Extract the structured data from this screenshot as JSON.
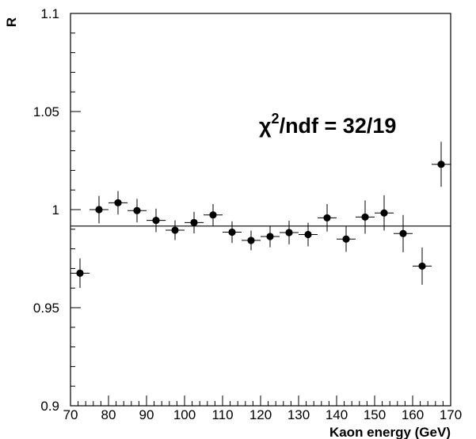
{
  "chart_data": {
    "type": "scatter",
    "title": "",
    "xlabel": "Kaon energy (GeV)",
    "ylabel": "R",
    "xlim": [
      70,
      170
    ],
    "ylim": [
      0.9,
      1.1
    ],
    "x_ticks": [
      70,
      80,
      90,
      100,
      110,
      120,
      130,
      140,
      150,
      160,
      170
    ],
    "x_tick_labels": [
      "70",
      "80",
      "90",
      "100",
      "110",
      "120",
      "130",
      "140",
      "150",
      "160",
      "170"
    ],
    "y_ticks": [
      0.9,
      0.95,
      1.0,
      1.05,
      1.1
    ],
    "y_tick_labels": [
      "0.9",
      "0.95",
      "1",
      "1.05",
      "1.1"
    ],
    "grid": false,
    "annotation": {
      "prefix": "χ",
      "sup": "2",
      "suffix": "/ndf = 32/19"
    },
    "fit_line_value": 0.9916,
    "series": [
      {
        "x": [
          72.5,
          77.5,
          82.5,
          87.5,
          92.5,
          97.5,
          102.5,
          107.5,
          112.5,
          117.5,
          122.5,
          127.5,
          132.5,
          137.5,
          142.5,
          147.5,
          152.5,
          157.5,
          162.5,
          167.5
        ],
        "x_err": [
          2.5,
          2.5,
          2.5,
          2.5,
          2.5,
          2.5,
          2.5,
          2.5,
          2.5,
          2.5,
          2.5,
          2.5,
          2.5,
          2.5,
          2.5,
          2.5,
          2.5,
          2.5,
          2.5,
          2.5
        ],
        "y": [
          0.9676,
          1.0,
          1.0035,
          0.9995,
          0.9945,
          0.9895,
          0.9934,
          0.9973,
          0.9885,
          0.9843,
          0.9863,
          0.9883,
          0.9873,
          0.9958,
          0.985,
          0.9962,
          0.9983,
          0.9878,
          0.9712,
          1.0231
        ],
        "y_err": [
          0.0075,
          0.007,
          0.006,
          0.006,
          0.006,
          0.005,
          0.0055,
          0.0055,
          0.0055,
          0.005,
          0.0055,
          0.006,
          0.006,
          0.007,
          0.0065,
          0.0085,
          0.009,
          0.0095,
          0.0095,
          0.0115
        ]
      }
    ]
  }
}
